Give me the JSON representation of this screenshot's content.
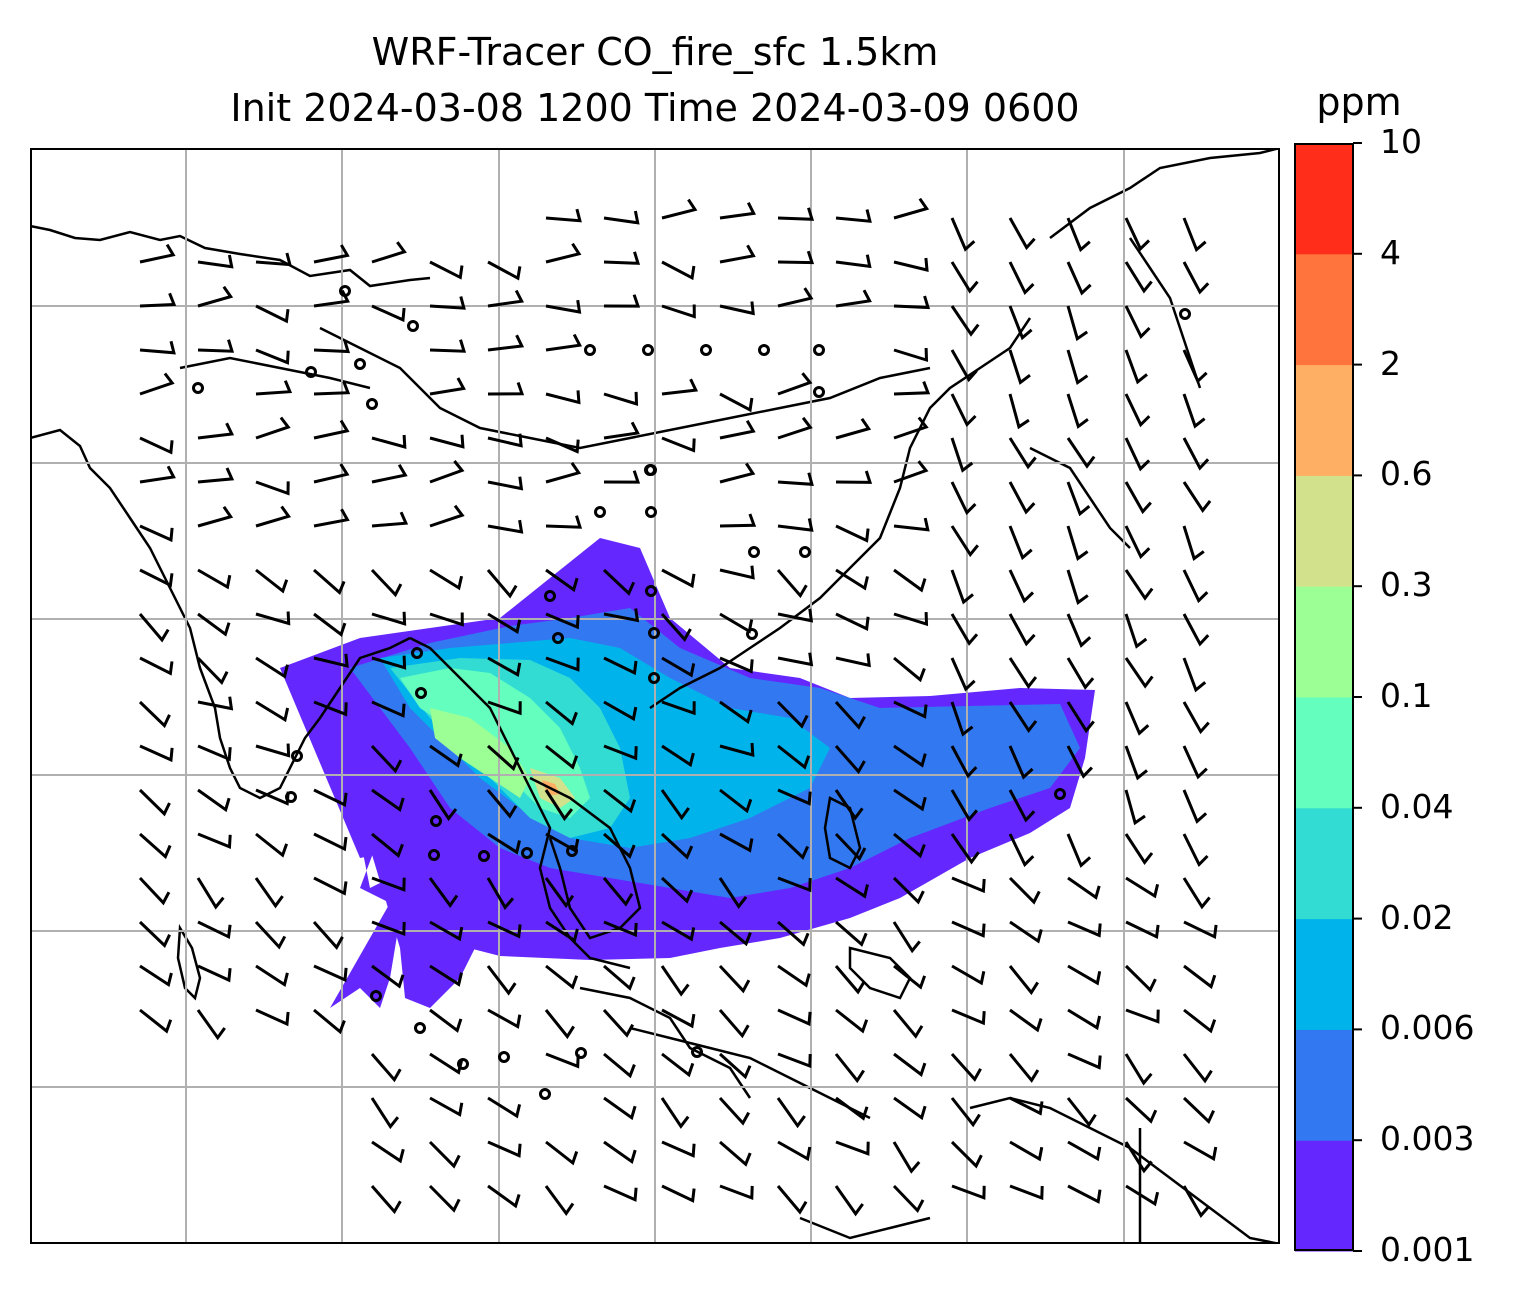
{
  "title": {
    "line1": "WRF-Tracer CO_fire_sfc 1.5km",
    "line2": "Init 2024-03-08 1200 Time 2024-03-09 0600"
  },
  "colorbar": {
    "unit": "ppm",
    "levels": [
      "0.001",
      "0.003",
      "0.006",
      "0.02",
      "0.04",
      "0.1",
      "0.3",
      "0.6",
      "2",
      "4",
      "10"
    ],
    "colors": [
      "#6428ff",
      "#3278f0",
      "#00b4eb",
      "#32dcd2",
      "#64ffbe",
      "#9bff96",
      "#d2e18c",
      "#ffaf64",
      "#ff733c",
      "#ff2d19"
    ]
  },
  "map": {
    "gridlines": true,
    "gridline_color": "#b0b0b0",
    "coastline_color": "#000000",
    "wind_symbol": "wind barbs",
    "calm_symbol": "calm circle"
  }
}
